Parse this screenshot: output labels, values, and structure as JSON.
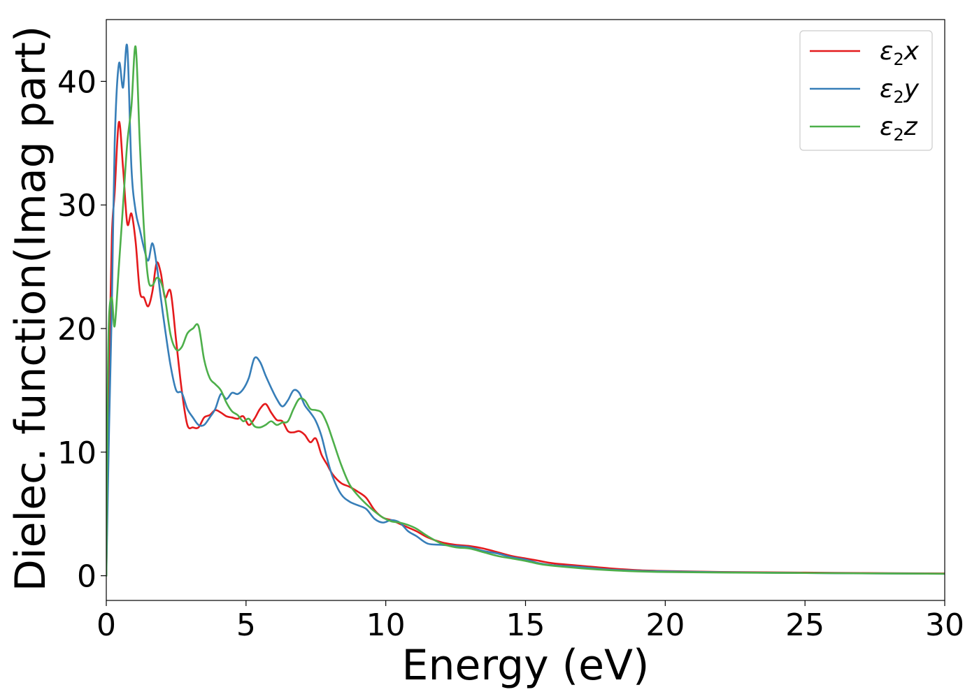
{
  "chart_data": {
    "type": "line",
    "title": "",
    "xlabel": "Energy (eV)",
    "ylabel": "Dielec. function(Imag part)",
    "xlim": [
      0,
      30
    ],
    "ylim": [
      -2,
      45
    ],
    "xticks": [
      0,
      5,
      10,
      15,
      20,
      25,
      30
    ],
    "yticks": [
      0,
      10,
      20,
      30,
      40
    ],
    "grid": false,
    "legend_position": "top-right",
    "series": [
      {
        "name": "ε2x",
        "legend_base": "ε",
        "legend_sub": "2",
        "legend_var": "x",
        "color": "#e41a1c",
        "x": [
          0,
          0.1,
          0.2,
          0.3,
          0.45,
          0.6,
          0.75,
          0.9,
          1.05,
          1.2,
          1.35,
          1.5,
          1.65,
          1.8,
          1.95,
          2.1,
          2.3,
          2.5,
          2.7,
          2.9,
          3.1,
          3.3,
          3.5,
          3.7,
          3.9,
          4.1,
          4.3,
          4.5,
          4.7,
          4.9,
          5.1,
          5.3,
          5.5,
          5.7,
          5.9,
          6.1,
          6.3,
          6.5,
          6.7,
          6.9,
          7.1,
          7.3,
          7.5,
          7.7,
          7.9,
          8.1,
          8.4,
          8.7,
          9.0,
          9.3,
          9.6,
          9.9,
          10.2,
          10.5,
          10.8,
          11.1,
          11.5,
          12.0,
          12.5,
          13.0,
          13.5,
          14.0,
          14.5,
          15.0,
          15.5,
          16.0,
          17.0,
          18.0,
          19.0,
          20.0,
          22.0,
          25.0,
          28.0,
          30.0
        ],
        "y": [
          0,
          17,
          27.5,
          31,
          36.7,
          33,
          28.5,
          29.3,
          27,
          23,
          22.5,
          21.8,
          23,
          25.3,
          24.5,
          22.5,
          23,
          19,
          15,
          12.2,
          12,
          12,
          12.8,
          13,
          13.4,
          13.2,
          12.9,
          12.8,
          12.7,
          12.9,
          12.2,
          12.7,
          13.5,
          13.9,
          13.2,
          12.6,
          12.5,
          11.7,
          11.6,
          11.7,
          11.4,
          10.8,
          11.1,
          9.8,
          9.0,
          8.2,
          7.5,
          7.2,
          6.8,
          6.3,
          5.3,
          4.7,
          4.5,
          4.2,
          3.9,
          3.6,
          3.1,
          2.7,
          2.5,
          2.4,
          2.2,
          1.9,
          1.6,
          1.4,
          1.2,
          1.0,
          0.8,
          0.6,
          0.45,
          0.38,
          0.3,
          0.25,
          0.2,
          0.18
        ]
      },
      {
        "name": "ε2y",
        "legend_base": "ε",
        "legend_sub": "2",
        "legend_var": "y",
        "color": "#377eb8",
        "x": [
          0,
          0.1,
          0.2,
          0.3,
          0.45,
          0.6,
          0.75,
          0.9,
          1.05,
          1.2,
          1.35,
          1.5,
          1.65,
          1.8,
          1.95,
          2.1,
          2.3,
          2.5,
          2.7,
          2.9,
          3.1,
          3.3,
          3.5,
          3.7,
          3.9,
          4.1,
          4.3,
          4.5,
          4.7,
          4.9,
          5.1,
          5.3,
          5.5,
          5.7,
          5.9,
          6.1,
          6.3,
          6.5,
          6.7,
          6.9,
          7.1,
          7.3,
          7.5,
          7.7,
          7.9,
          8.1,
          8.4,
          8.7,
          9.0,
          9.3,
          9.6,
          9.9,
          10.2,
          10.5,
          10.8,
          11.1,
          11.5,
          12.0,
          12.5,
          13.0,
          13.5,
          14.0,
          14.5,
          15.0,
          15.5,
          16.0,
          17.0,
          18.0,
          19.0,
          20.0,
          22.0,
          25.0,
          28.0,
          30.0
        ],
        "y": [
          0,
          12,
          22,
          35,
          41.4,
          39.5,
          42.8,
          33,
          29.5,
          28,
          26.5,
          25.5,
          26.9,
          25.2,
          22.5,
          20,
          17,
          15,
          14.8,
          13.5,
          12.8,
          12.2,
          12.2,
          12.8,
          13.5,
          14.7,
          14.3,
          14.8,
          14.7,
          15.1,
          16,
          17.6,
          17.3,
          16.2,
          15.2,
          14.3,
          13.7,
          14.2,
          15,
          14.8,
          13.8,
          13.2,
          12.5,
          11.3,
          9.5,
          8.0,
          6.6,
          6.0,
          5.7,
          5.4,
          4.6,
          4.3,
          4.5,
          4.3,
          3.6,
          3.2,
          2.6,
          2.5,
          2.4,
          2.3,
          2.0,
          1.8,
          1.5,
          1.3,
          1.0,
          0.85,
          0.7,
          0.5,
          0.4,
          0.35,
          0.28,
          0.22,
          0.18,
          0.16
        ]
      },
      {
        "name": "ε2z",
        "legend_base": "ε",
        "legend_sub": "2",
        "legend_var": "z",
        "color": "#4daf4a",
        "x": [
          0,
          0.05,
          0.1,
          0.2,
          0.3,
          0.45,
          0.6,
          0.75,
          0.9,
          1.05,
          1.2,
          1.35,
          1.5,
          1.65,
          1.8,
          1.95,
          2.1,
          2.3,
          2.5,
          2.7,
          2.9,
          3.1,
          3.3,
          3.5,
          3.7,
          3.9,
          4.1,
          4.3,
          4.5,
          4.7,
          4.9,
          5.1,
          5.3,
          5.5,
          5.7,
          5.9,
          6.1,
          6.3,
          6.5,
          6.7,
          6.9,
          7.1,
          7.3,
          7.5,
          7.7,
          7.9,
          8.1,
          8.4,
          8.7,
          9.0,
          9.3,
          9.6,
          9.9,
          10.2,
          10.5,
          10.8,
          11.1,
          11.5,
          12.0,
          12.5,
          13.0,
          13.5,
          14.0,
          14.5,
          15.0,
          15.5,
          16.0,
          17.0,
          18.0,
          19.0,
          20.0,
          22.0,
          25.0,
          28.0,
          30.0
        ],
        "y": [
          0,
          15,
          21,
          22.5,
          20.2,
          25,
          30,
          35,
          38,
          42.8,
          35,
          28,
          24,
          23.5,
          24.1,
          23.8,
          22.5,
          19.5,
          18.3,
          18.5,
          19.6,
          20,
          20.2,
          17.5,
          16,
          15.5,
          15,
          14,
          13.3,
          13,
          12.5,
          12.7,
          12.1,
          12,
          12.2,
          12.5,
          12.2,
          12.4,
          12.5,
          13.5,
          14.3,
          14.2,
          13.5,
          13.4,
          13.2,
          12.3,
          11,
          9,
          7.4,
          6.5,
          5.8,
          5.2,
          4.7,
          4.4,
          4.3,
          4.1,
          3.8,
          3.2,
          2.6,
          2.3,
          2.2,
          1.9,
          1.6,
          1.4,
          1.2,
          0.95,
          0.8,
          0.6,
          0.45,
          0.35,
          0.3,
          0.26,
          0.22,
          0.18,
          0.16
        ]
      }
    ]
  }
}
